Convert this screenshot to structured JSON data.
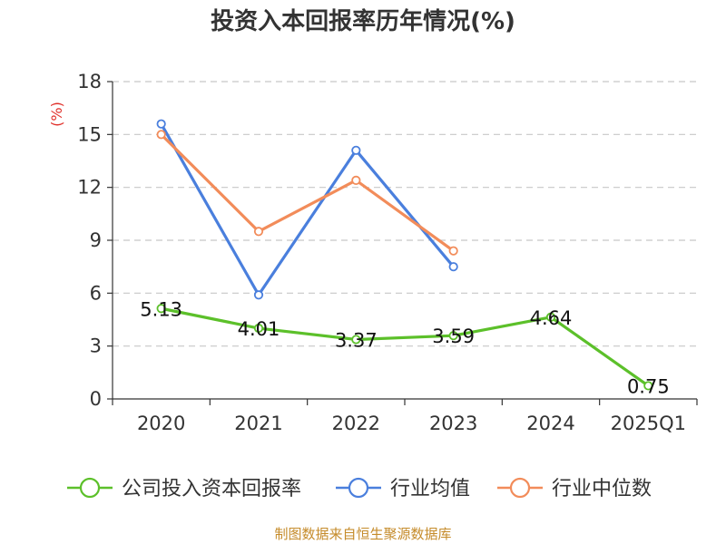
{
  "chart_data": {
    "type": "line",
    "title": "投资入本回报率历年情况(%)",
    "ylabel": "(%)",
    "xlabel": "",
    "categories": [
      "2020",
      "2021",
      "2022",
      "2023",
      "2024",
      "2025Q1"
    ],
    "ylim": [
      0,
      18
    ],
    "yticks": [
      0,
      3,
      6,
      9,
      12,
      15,
      18
    ],
    "grid": true,
    "legend_position": "bottom",
    "series": [
      {
        "name": "公司投入资本回报率",
        "color": "#5cc02a",
        "values": [
          5.13,
          4.01,
          3.37,
          3.59,
          4.64,
          0.75
        ],
        "labels": [
          "5.13",
          "4.01",
          "3.37",
          "3.59",
          "4.64",
          "0.75"
        ],
        "show_labels": true
      },
      {
        "name": "行业均值",
        "color": "#4a7fdd",
        "values": [
          15.6,
          5.9,
          14.1,
          7.5,
          null,
          null
        ],
        "show_labels": false
      },
      {
        "name": "行业中位数",
        "color": "#f28c5a",
        "values": [
          15.0,
          9.5,
          12.4,
          8.4,
          null,
          null
        ],
        "show_labels": false
      }
    ],
    "source": "制图数据来自恒生聚源数据库"
  }
}
